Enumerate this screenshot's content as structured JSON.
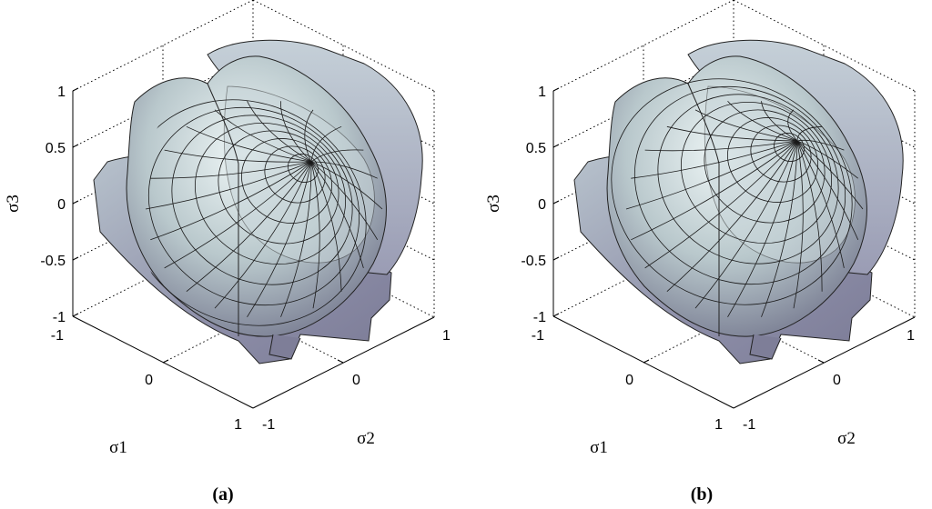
{
  "chart_data": [
    {
      "type": "surface3d",
      "panel_label": "(a)",
      "xlabel": "σ1",
      "ylabel": "σ2",
      "zlabel": "σ3",
      "x_ticks": [
        "-1",
        "0",
        "1"
      ],
      "y_ticks": [
        "-1",
        "0",
        "1"
      ],
      "z_ticks": [
        "1",
        "0.5",
        "0",
        "-0.5",
        "-1"
      ],
      "xlim": [
        -1,
        1
      ],
      "ylim": [
        -1,
        1
      ],
      "zlim": [
        -1,
        1
      ],
      "grid": true,
      "colormap": "bone"
    },
    {
      "type": "surface3d",
      "panel_label": "(b)",
      "xlabel": "σ1",
      "ylabel": "σ2",
      "zlabel": "σ3",
      "x_ticks": [
        "-1",
        "0",
        "1"
      ],
      "y_ticks": [
        "-1",
        "0",
        "1"
      ],
      "z_ticks": [
        "1",
        "0.5",
        "0",
        "-0.5",
        "-1"
      ],
      "xlim": [
        -1,
        1
      ],
      "ylim": [
        -1,
        1
      ],
      "zlim": [
        -1,
        1
      ],
      "grid": true,
      "colormap": "bone"
    }
  ],
  "colors": {
    "surface_light": "#dfeaec",
    "surface_mid": "#a9b5c0",
    "surface_dark": "#6f6f8a"
  }
}
